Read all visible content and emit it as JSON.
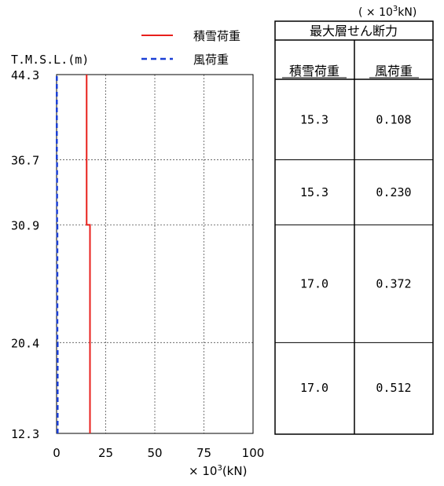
{
  "chart_data": {
    "type": "line",
    "y_axis": {
      "title": "T.M.S.L.(m)",
      "ticks": [
        "44.3",
        "36.7",
        "30.9",
        "20.4",
        "12.3"
      ],
      "values": [
        44.3,
        36.7,
        30.9,
        20.4,
        12.3
      ]
    },
    "x_axis": {
      "ticks": [
        "0",
        "25",
        "50",
        "75",
        "100"
      ],
      "xlim": [
        0,
        100
      ],
      "unit_prefix": "× 10",
      "unit_exp": "3",
      "unit_suffix": "(kN)"
    },
    "grid": true,
    "legend": {
      "position": "top",
      "entries": [
        {
          "name": "積雪荷重",
          "color": "#e8201c",
          "style": "solid"
        },
        {
          "name": "風荷重",
          "color": "#1a3fd6",
          "style": "dashed"
        }
      ]
    },
    "series": [
      {
        "name": "積雪荷重",
        "color": "#e8201c",
        "style": "solid",
        "points": [
          {
            "x": 17.0,
            "y": 12.3
          },
          {
            "x": 17.0,
            "y": 30.9
          },
          {
            "x": 15.3,
            "y": 30.9
          },
          {
            "x": 15.3,
            "y": 44.3
          }
        ]
      },
      {
        "name": "風荷重",
        "color": "#1a3fd6",
        "style": "dashed",
        "points": [
          {
            "x": 0.512,
            "y": 12.3
          },
          {
            "x": 0.512,
            "y": 20.4
          },
          {
            "x": 0.372,
            "y": 20.4
          },
          {
            "x": 0.372,
            "y": 30.9
          },
          {
            "x": 0.23,
            "y": 30.9
          },
          {
            "x": 0.23,
            "y": 36.7
          },
          {
            "x": 0.108,
            "y": 36.7
          },
          {
            "x": 0.108,
            "y": 44.3
          }
        ]
      }
    ]
  },
  "table": {
    "unit_prefix": "( × 10",
    "unit_exp": "3",
    "unit_suffix": "kN)",
    "title": "最大層せん断力",
    "headers": [
      "積雪荷重",
      "風荷重"
    ],
    "rows": [
      [
        "15.3",
        "0.108"
      ],
      [
        "15.3",
        "0.230"
      ],
      [
        "17.0",
        "0.372"
      ],
      [
        "17.0",
        "0.512"
      ]
    ]
  }
}
